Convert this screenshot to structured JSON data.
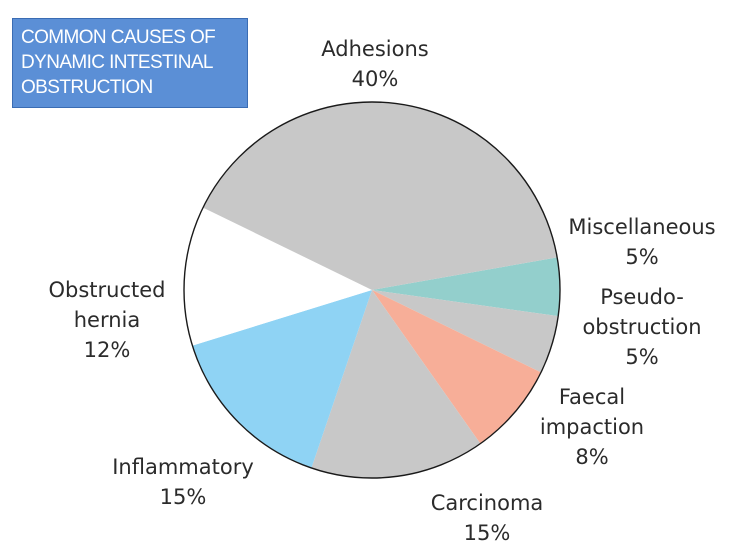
{
  "chart_data": {
    "type": "pie",
    "title_lines": [
      "COMMON CAUSES OF",
      "DYNAMIC INTESTINAL",
      "OBSTRUCTION"
    ],
    "slices": [
      {
        "label_lines": [
          "Miscellaneous"
        ],
        "value_text": "5%",
        "value": 5,
        "color": "#93cfcc"
      },
      {
        "label_lines": [
          "Pseudo-",
          "obstruction"
        ],
        "value_text": "5%",
        "value": 5,
        "color": "#c8c8c8"
      },
      {
        "label_lines": [
          "Faecal",
          "impaction"
        ],
        "value_text": "8%",
        "value": 8,
        "color": "#f7ae98"
      },
      {
        "label_lines": [
          "Carcinoma"
        ],
        "value_text": "15%",
        "value": 15,
        "color": "#c8c8c8"
      },
      {
        "label_lines": [
          "Inflammatory"
        ],
        "value_text": "15%",
        "value": 15,
        "color": "#8fd3f4"
      },
      {
        "label_lines": [
          "Obstructed",
          "hernia"
        ],
        "value_text": "12%",
        "value": 12,
        "color": "#ffffff"
      },
      {
        "label_lines": [
          "Adhesions"
        ],
        "value_text": "40%",
        "value": 40,
        "color": "#c8c8c8"
      }
    ],
    "legend": "none (labels placed beside slices)"
  }
}
